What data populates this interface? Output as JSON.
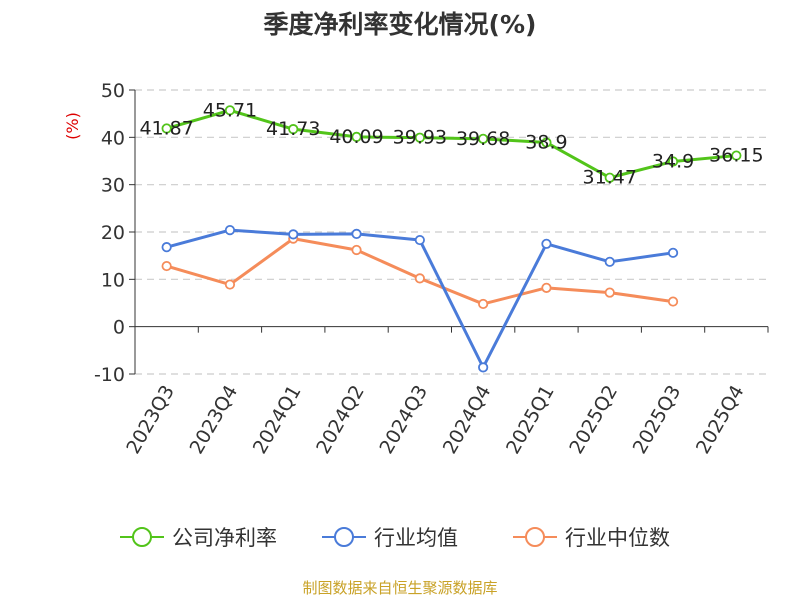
{
  "chart_data": {
    "type": "line",
    "title": "季度净利率变化情况(%)",
    "ylabel": "(%)",
    "ylim": [
      -10,
      50
    ],
    "yticks": [
      -10,
      0,
      10,
      20,
      30,
      40,
      50
    ],
    "grid": true,
    "legend_position": "bottom",
    "categories": [
      "2023Q3",
      "2023Q4",
      "2024Q1",
      "2024Q2",
      "2024Q3",
      "2024Q4",
      "2025Q1",
      "2025Q2",
      "2025Q3",
      "2025Q4"
    ],
    "series": [
      {
        "name": "公司净利率",
        "color": "#52c41a",
        "values": [
          41.87,
          45.71,
          41.73,
          40.09,
          39.93,
          39.68,
          38.9,
          31.47,
          34.9,
          36.15
        ],
        "labels": [
          "41.87",
          "45.71",
          "41.73",
          "40.09",
          "39.93",
          "39.68",
          "38.9",
          "31.47",
          "34.9",
          "36.15"
        ]
      },
      {
        "name": "行业均值",
        "color": "#4a7bd9",
        "values": [
          16.8,
          20.4,
          19.5,
          19.6,
          18.3,
          -8.6,
          17.5,
          13.7,
          15.6,
          null
        ]
      },
      {
        "name": "行业中位数",
        "color": "#f58c5a",
        "values": [
          12.8,
          8.9,
          18.6,
          16.2,
          10.2,
          4.8,
          8.2,
          7.2,
          5.3,
          null
        ]
      }
    ]
  },
  "footer": {
    "source": "制图数据来自恒生聚源数据库"
  }
}
